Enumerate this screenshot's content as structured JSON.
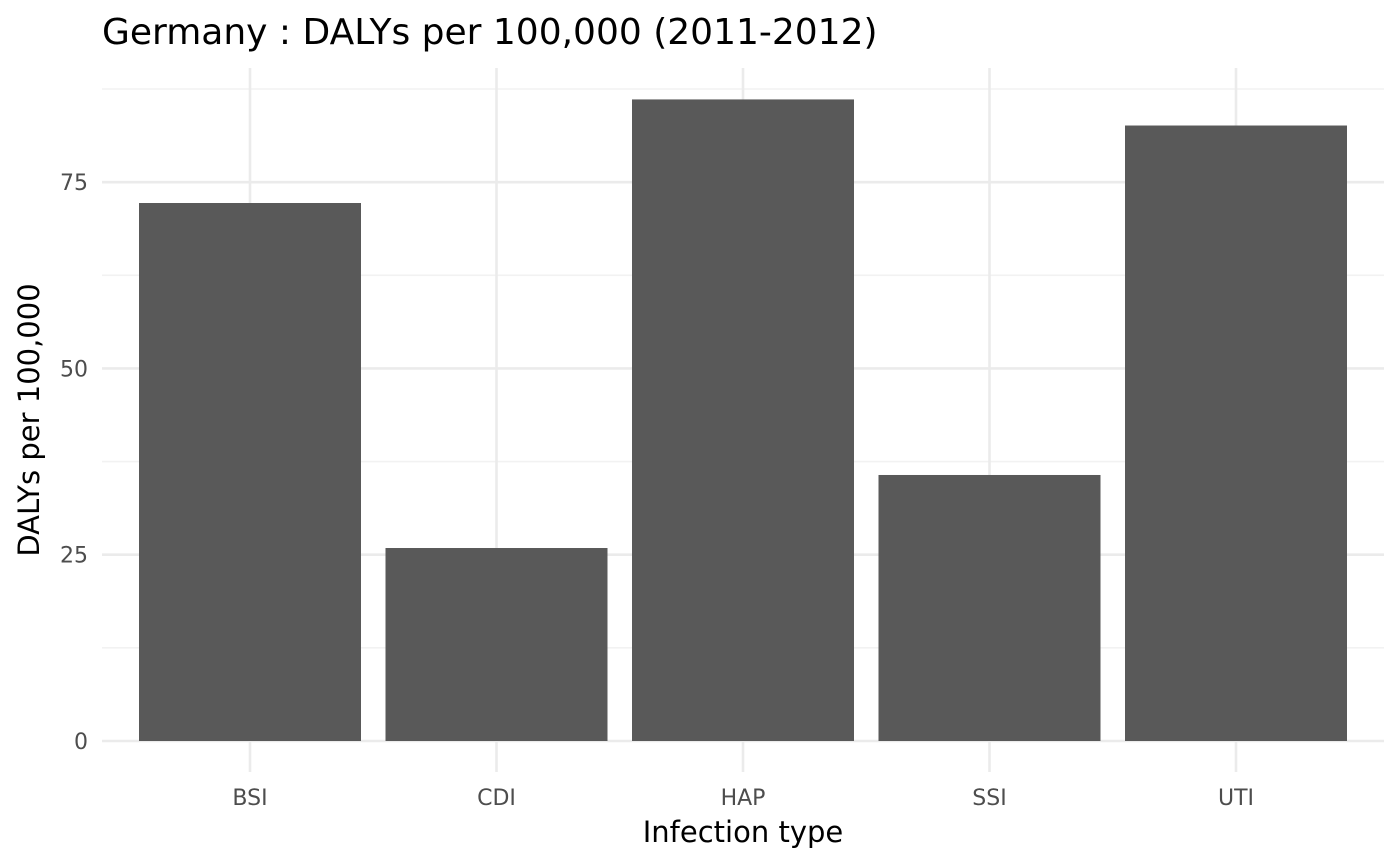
{
  "chart_data": {
    "type": "bar",
    "title": "Germany : DALYs per 100,000 (2011-2012)",
    "xlabel": "Infection type",
    "ylabel": "DALYs per 100,000",
    "categories": [
      "BSI",
      "CDI",
      "HAP",
      "SSI",
      "UTI"
    ],
    "values": [
      72.2,
      25.9,
      86.1,
      35.7,
      82.6
    ],
    "ylim": [
      0,
      87.5
    ],
    "yticks": [
      0,
      25,
      50,
      75
    ],
    "ytick_labels": [
      "0",
      "25",
      "50",
      "75"
    ],
    "y_minor_ticks": [
      12.5,
      37.5,
      62.5,
      87.5
    ],
    "grid": true,
    "legend": "none",
    "bar_color": "#595959",
    "grid_color": "#ebebeb",
    "background_color": "#ffffff"
  }
}
